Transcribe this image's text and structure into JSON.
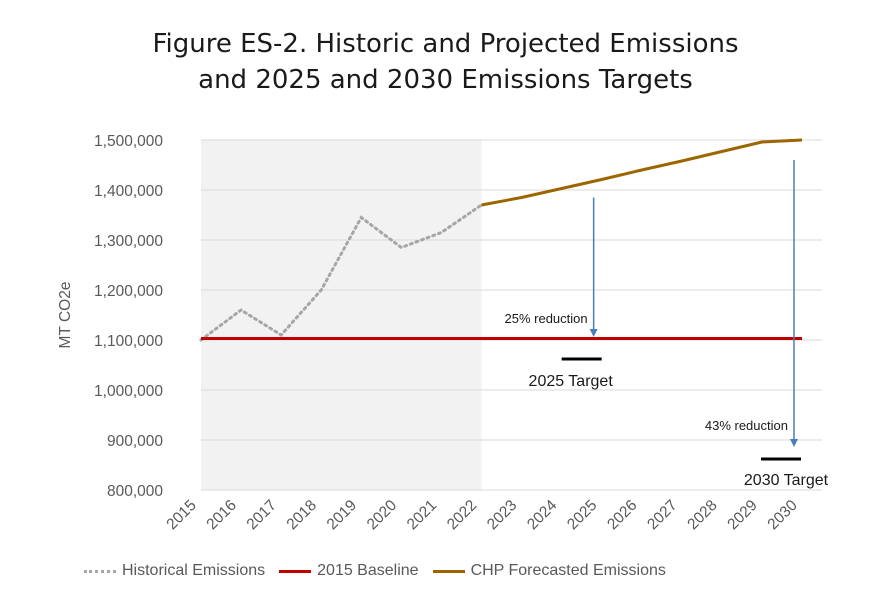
{
  "title": {
    "line1": "Figure ES-2. Historic and Projected Emissions",
    "line2": "and 2025 and 2030 Emissions Targets"
  },
  "colors": {
    "historical": "#a6a6a6",
    "baseline": "#c00000",
    "forecast": "#9c6500",
    "arrow": "#4a7ebb",
    "target": "#000000",
    "shade": "#f2f2f2",
    "grid": "#d9d9d9"
  },
  "legend": [
    {
      "key": "historical",
      "label": "Historical Emissions"
    },
    {
      "key": "baseline",
      "label": "2015 Baseline"
    },
    {
      "key": "forecast",
      "label": "CHP Forecasted Emissions"
    }
  ],
  "chart_data": {
    "type": "line",
    "ylabel": "MT CO2e",
    "xlabel": "",
    "ylim": [
      800000,
      1500000
    ],
    "yticks": [
      800000,
      900000,
      1000000,
      1100000,
      1200000,
      1300000,
      1400000,
      1500000
    ],
    "ytick_labels": [
      "800,000",
      "900,000",
      "1,000,000",
      "1,100,000",
      "1,200,000",
      "1,300,000",
      "1,400,000",
      "1,500,000"
    ],
    "x_categories": [
      "2015",
      "2016",
      "2017",
      "2018",
      "2019",
      "2020",
      "2021",
      "2022",
      "2023",
      "2024",
      "2025",
      "2026",
      "2027",
      "2028",
      "2029",
      "2030"
    ],
    "grid": "horizontal",
    "legend_position": "bottom",
    "shaded_range": [
      "2015",
      "2022"
    ],
    "series": [
      {
        "name": "Historical Emissions",
        "style": "dotted",
        "x": [
          "2015",
          "2016",
          "2017",
          "2018",
          "2019",
          "2020",
          "2021",
          "2022"
        ],
        "values": [
          1100000,
          1160000,
          1110000,
          1200000,
          1345000,
          1285000,
          1315000,
          1370000
        ]
      },
      {
        "name": "2015 Baseline",
        "style": "solid",
        "x": [
          "2015",
          "2030"
        ],
        "values": [
          1103000,
          1103000
        ]
      },
      {
        "name": "CHP Forecasted Emissions",
        "style": "solid",
        "x": [
          "2022",
          "2023",
          "2024",
          "2025",
          "2026",
          "2027",
          "2028",
          "2029",
          "2030"
        ],
        "values": [
          1370000,
          1385000,
          1403000,
          1421000,
          1440000,
          1458000,
          1477000,
          1496000,
          1500000
        ]
      }
    ],
    "annotations": [
      {
        "text": "25% reduction",
        "arrow_x": "2024.8",
        "from": 1385000,
        "to": 1110000
      },
      {
        "text": "43% reduction",
        "arrow_x": "2029.8",
        "from": 1460000,
        "to": 890000
      }
    ],
    "targets": [
      {
        "label": "2025 Target",
        "x": "2025",
        "value": 1062000
      },
      {
        "label": "2030 Target",
        "x": "2030",
        "value": 862000
      }
    ]
  }
}
